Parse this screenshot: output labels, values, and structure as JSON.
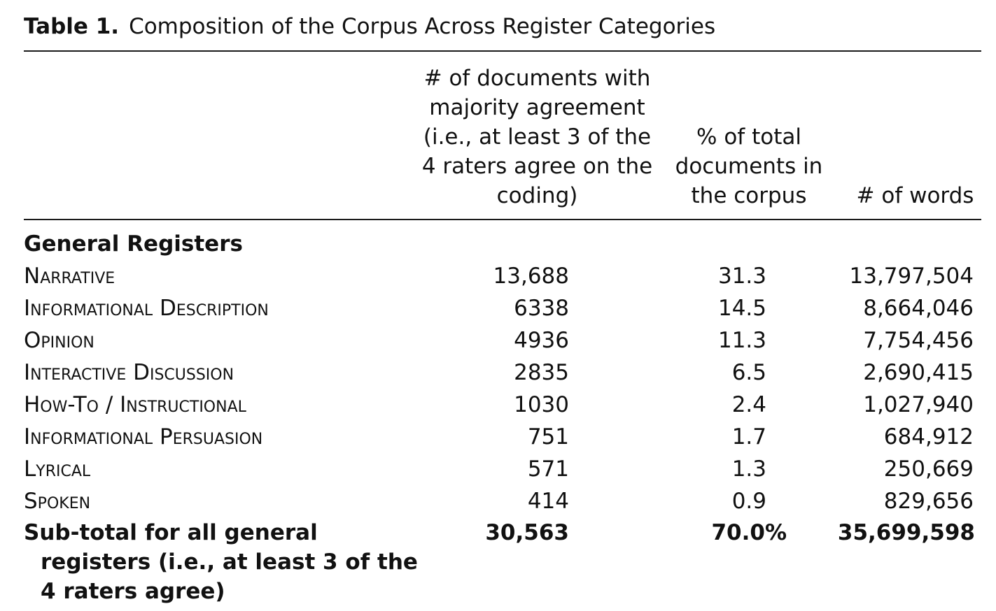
{
  "table": {
    "caption_label": "Table 1.",
    "caption_title": "Composition of the Corpus Across Register Categories",
    "columns": [
      "# of documents with\nmajority agreement\n(i.e., at least 3 of the\n4 raters agree on the\ncoding)",
      "% of total\ndocuments in\nthe corpus",
      "# of words"
    ],
    "section_title": "General Registers",
    "rows": [
      {
        "name": "Narrative",
        "documents": "13,688",
        "percent": "31.3",
        "words": "13,797,504"
      },
      {
        "name": "Informational Description",
        "documents": "6338",
        "percent": "14.5",
        "words": "8,664,046"
      },
      {
        "name": "Opinion",
        "documents": "4936",
        "percent": "11.3",
        "words": "7,754,456"
      },
      {
        "name": "Interactive Discussion",
        "documents": "2835",
        "percent": "6.5",
        "words": "2,690,415"
      },
      {
        "name": "How-To / Instructional",
        "documents": "1030",
        "percent": "2.4",
        "words": "1,027,940"
      },
      {
        "name": "Informational Persuasion",
        "documents": "751",
        "percent": "1.7",
        "words": "684,912"
      },
      {
        "name": "Lyrical",
        "documents": "571",
        "percent": "1.3",
        "words": "250,669"
      },
      {
        "name": "Spoken",
        "documents": "414",
        "percent": "0.9",
        "words": "829,656"
      }
    ],
    "subtotal": {
      "name_lines": [
        "Sub-total for all general",
        "registers (i.e., at least 3 of the",
        "4 raters agree)"
      ],
      "documents": "30,563",
      "percent": "70.0%",
      "words": "35,699,598"
    }
  }
}
